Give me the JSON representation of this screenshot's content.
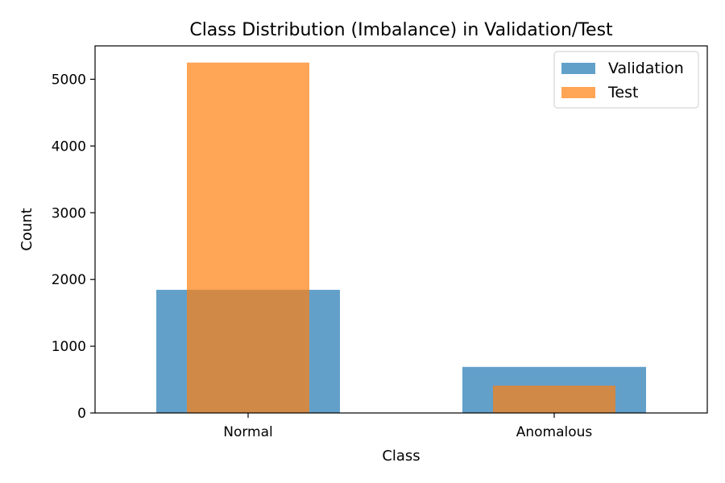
{
  "chart_data": {
    "type": "bar",
    "title": "Class Distribution (Imbalance) in Validation/Test",
    "xlabel": "Class",
    "ylabel": "Count",
    "categories": [
      "Normal",
      "Anomalous"
    ],
    "ylim": [
      0,
      5500
    ],
    "yticks": [
      0,
      1000,
      2000,
      3000,
      4000,
      5000
    ],
    "series": [
      {
        "name": "Validation",
        "values": [
          1845,
          690
        ],
        "color": "#1f77b4",
        "opacity": 0.7,
        "bar_width": 0.6
      },
      {
        "name": "Test",
        "values": [
          5250,
          410
        ],
        "color": "#ff7f0e",
        "opacity": 0.7,
        "bar_width": 0.4
      }
    ],
    "legend": "top-right",
    "grid": false
  }
}
